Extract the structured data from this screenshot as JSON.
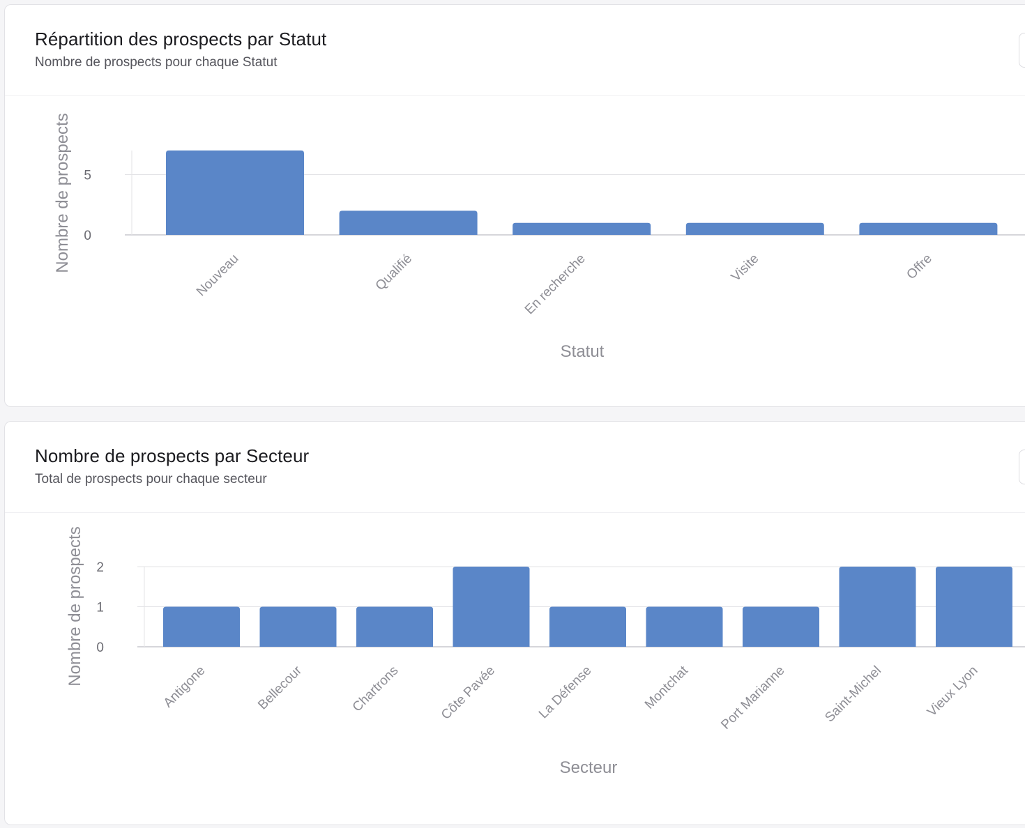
{
  "colors": {
    "bar": "#5a86c8",
    "grid": "#e3e3e6",
    "axis": "#c9c9cd"
  },
  "cards": [
    {
      "title": "Répartition des prospects par Statut",
      "subtitle": "Nombre de prospects pour chaque Statut"
    },
    {
      "title": "Nombre de prospects par Secteur",
      "subtitle": "Total de prospects pour chaque secteur"
    }
  ],
  "chart_data": [
    {
      "type": "bar",
      "title": "Répartition des prospects par Statut",
      "subtitle": "Nombre de prospects pour chaque Statut",
      "xlabel": "Statut",
      "ylabel": "Nombre de prospects",
      "categories": [
        "Nouveau",
        "Qualifié",
        "En recherche",
        "Visite",
        "Offre"
      ],
      "values": [
        7,
        2,
        1,
        1,
        1
      ],
      "yticks": [
        0,
        5
      ],
      "ylim": [
        0,
        7
      ],
      "grid": true,
      "legend": false
    },
    {
      "type": "bar",
      "title": "Nombre de prospects par Secteur",
      "subtitle": "Total de prospects pour chaque secteur",
      "xlabel": "Secteur",
      "ylabel": "Nombre de prospects",
      "categories": [
        "Antigone",
        "Bellecour",
        "Chartrons",
        "Côte Pavée",
        "La Défense",
        "Montchat",
        "Port Marianne",
        "Saint-Michel",
        "Vieux Lyon"
      ],
      "values": [
        1,
        1,
        1,
        2,
        1,
        1,
        1,
        2,
        2
      ],
      "yticks": [
        0,
        1,
        2
      ],
      "ylim": [
        0,
        2
      ],
      "grid": true,
      "legend": false
    }
  ]
}
